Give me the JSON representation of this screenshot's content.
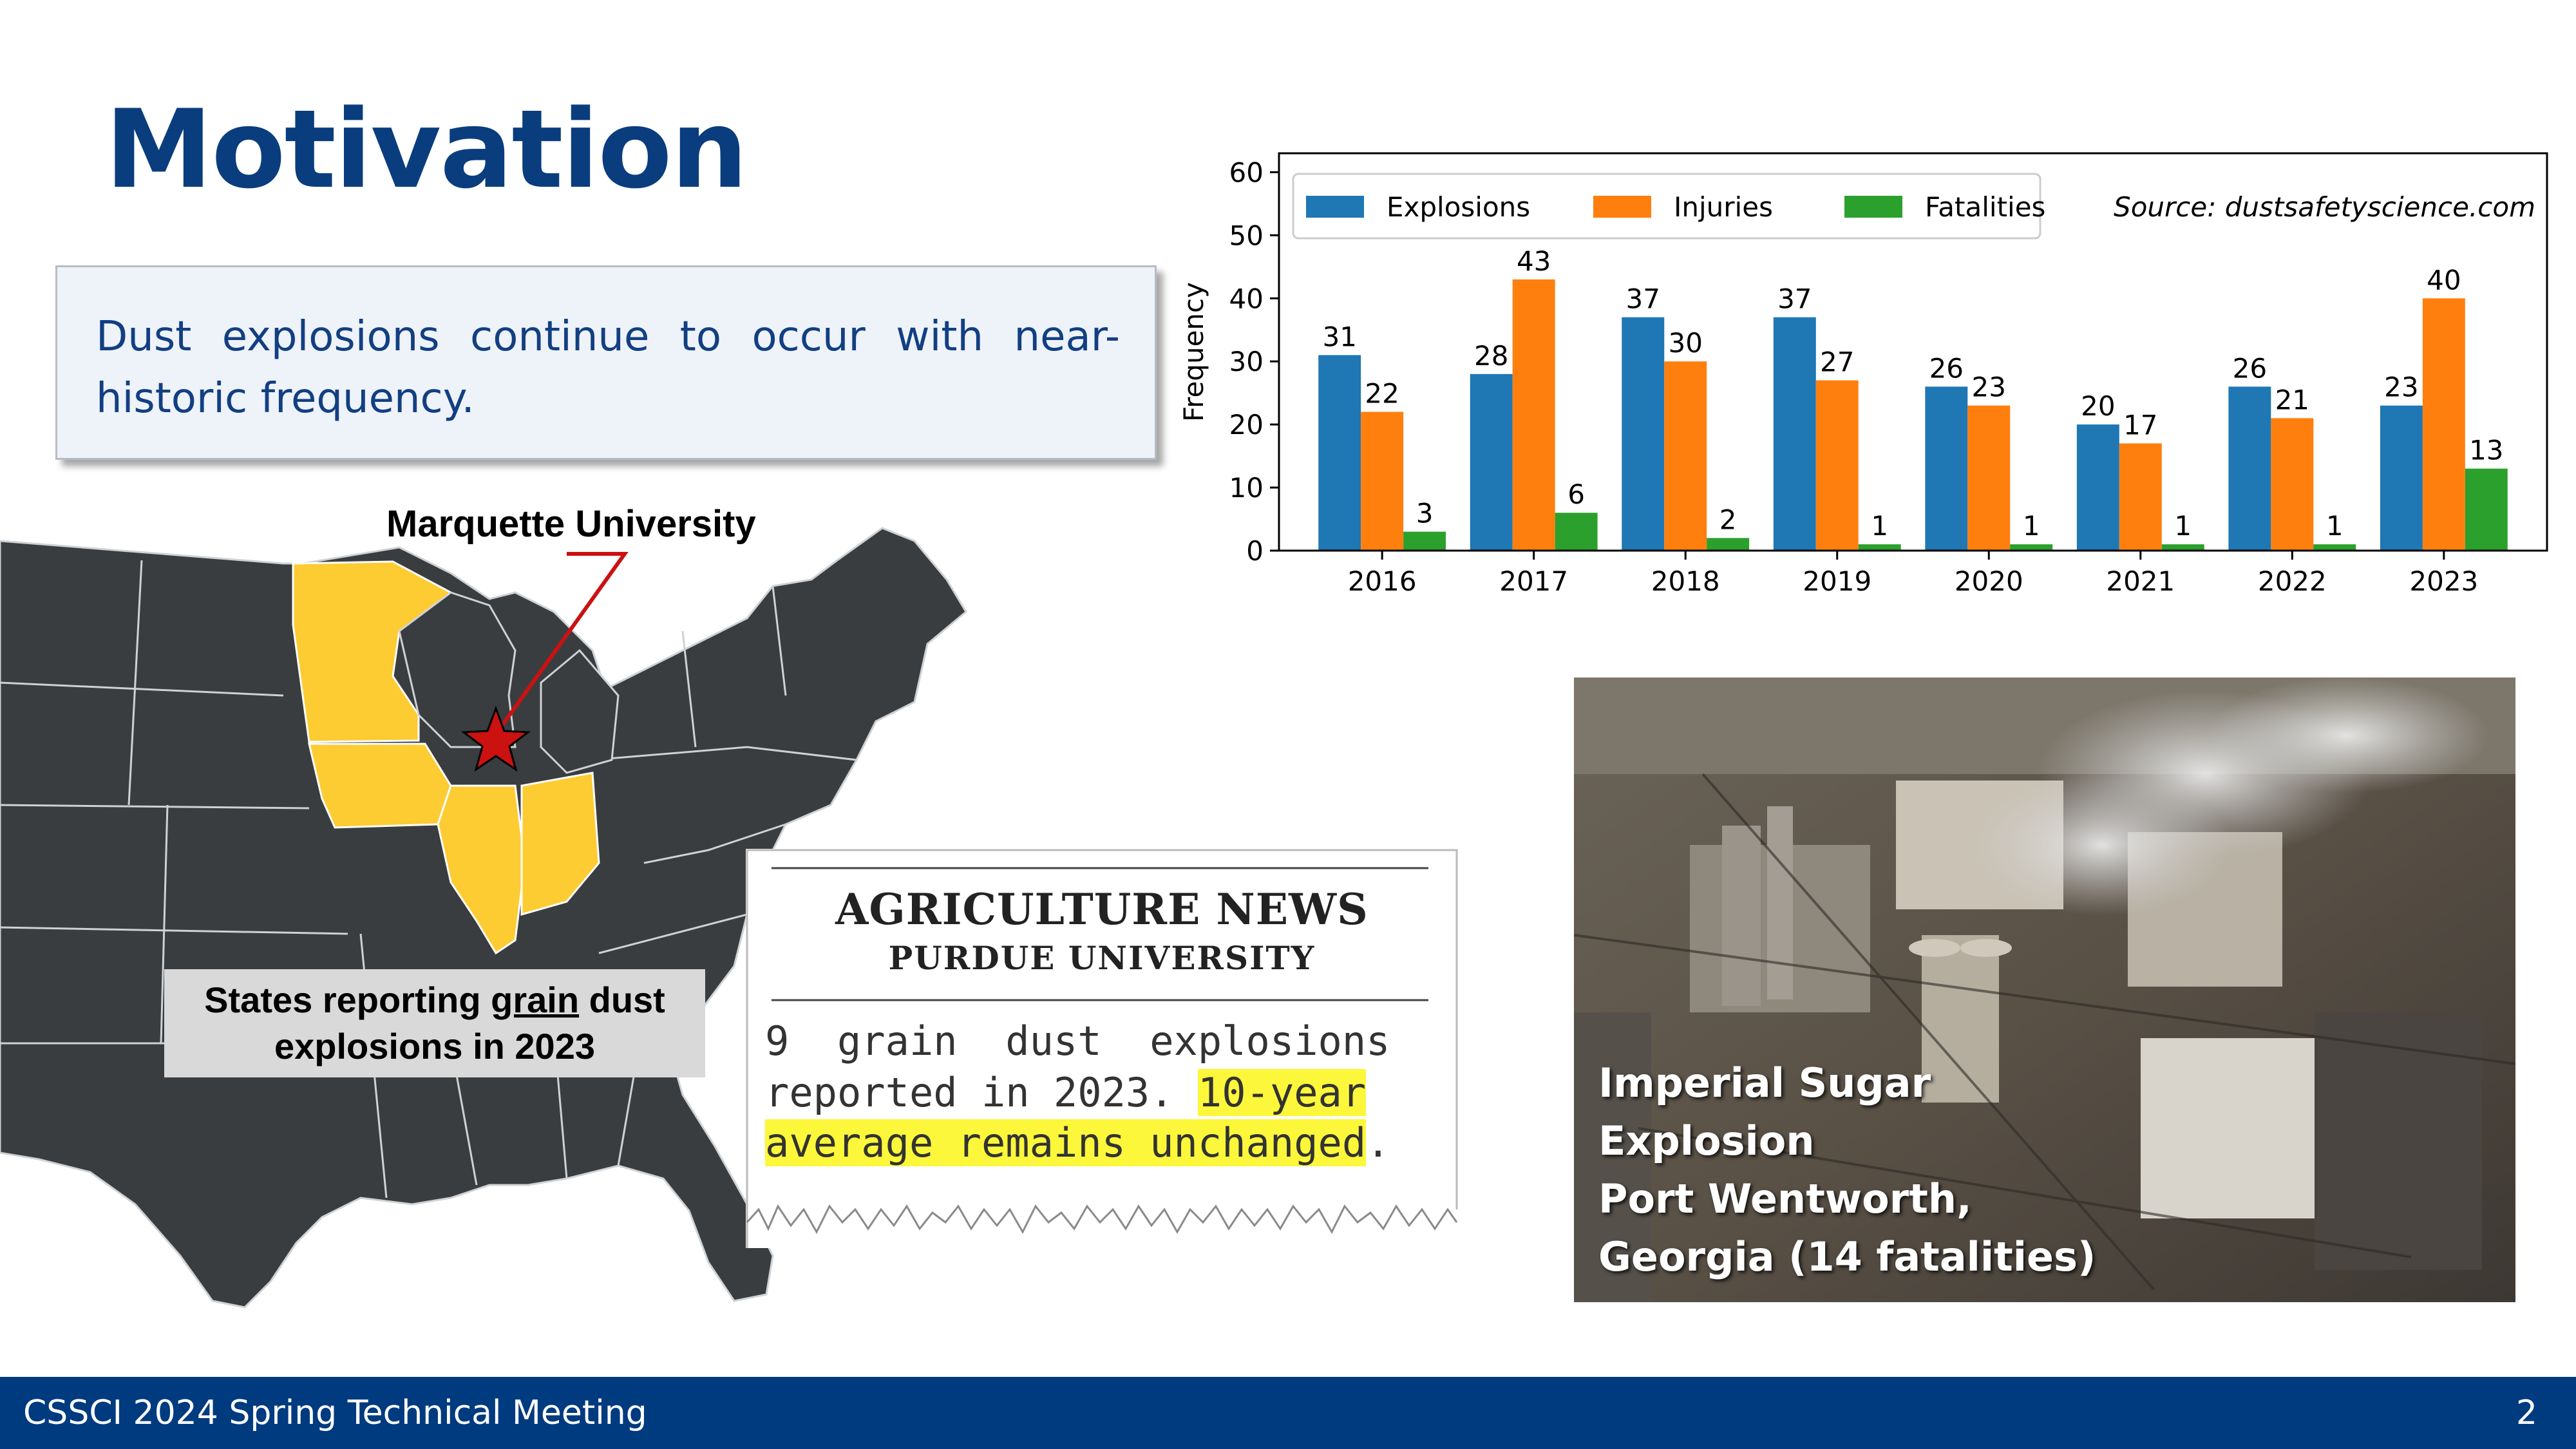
{
  "slide": {
    "title": "Motivation",
    "callout": "Dust explosions continue to occur with near-historic frequency."
  },
  "map": {
    "pin_label": "Marquette University",
    "caption_part1": "States reporting ",
    "caption_underlined": "grain",
    "caption_part2": " dust explosions in 2023",
    "highlight_color": "#fdcb32",
    "land_color": "#3a3d40",
    "pin_color": "#cc1111"
  },
  "news": {
    "headline": "AGRICULTURE NEWS",
    "subheadline": "PURDUE UNIVERSITY",
    "line1": "9  grain  dust  explosions",
    "line2_plain": "reported in 2023. ",
    "line2_hl": "10-year",
    "line3_hl": "average remains unchanged",
    "line3_end": "."
  },
  "chart_data": {
    "type": "bar",
    "categories": [
      "2016",
      "2017",
      "2018",
      "2019",
      "2020",
      "2021",
      "2022",
      "2023"
    ],
    "series": [
      {
        "name": "Explosions",
        "color": "#1f77b4",
        "values": [
          31,
          28,
          37,
          37,
          26,
          20,
          26,
          23
        ]
      },
      {
        "name": "Injuries",
        "color": "#ff7f0e",
        "values": [
          22,
          43,
          30,
          27,
          23,
          17,
          21,
          40
        ]
      },
      {
        "name": "Fatalities",
        "color": "#2ca02c",
        "values": [
          3,
          6,
          2,
          1,
          1,
          1,
          1,
          13
        ]
      }
    ],
    "ylabel": "Frequency",
    "ylim": [
      0,
      63
    ],
    "yticks": [
      0,
      10,
      20,
      30,
      40,
      50,
      60
    ],
    "legend_position": "top-left",
    "annotation": "Source: dustsafetyscience.com"
  },
  "photo": {
    "caption_line1": "Imperial Sugar",
    "caption_line2": "Explosion",
    "caption_line3": "Port Wentworth,",
    "caption_line4": "Georgia (14 fatalities)"
  },
  "footer": {
    "meeting": "CSSCI 2024 Spring Technical Meeting",
    "page": "2"
  }
}
